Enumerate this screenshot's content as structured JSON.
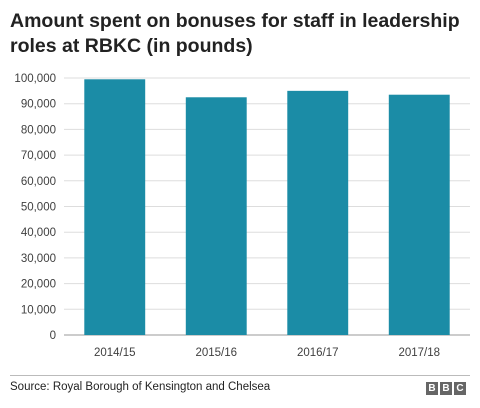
{
  "chart_data": {
    "type": "bar",
    "title": "Amount spent on bonuses for staff in leadership roles at RBKC (in pounds)",
    "categories": [
      "2014/15",
      "2015/16",
      "2016/17",
      "2017/18"
    ],
    "values": [
      99500,
      92500,
      95000,
      93500
    ],
    "ylim": [
      0,
      100000
    ],
    "yticks": [
      "0",
      "10,000",
      "20,000",
      "30,000",
      "40,000",
      "50,000",
      "60,000",
      "70,000",
      "80,000",
      "90,000",
      "100,000"
    ],
    "xlabel": "",
    "ylabel": "",
    "grid": true,
    "bar_color": "#1b8ca6"
  },
  "footer": {
    "source": "Source: Royal Borough of Kensington and Chelsea",
    "logo_letters": [
      "B",
      "B",
      "C"
    ]
  }
}
